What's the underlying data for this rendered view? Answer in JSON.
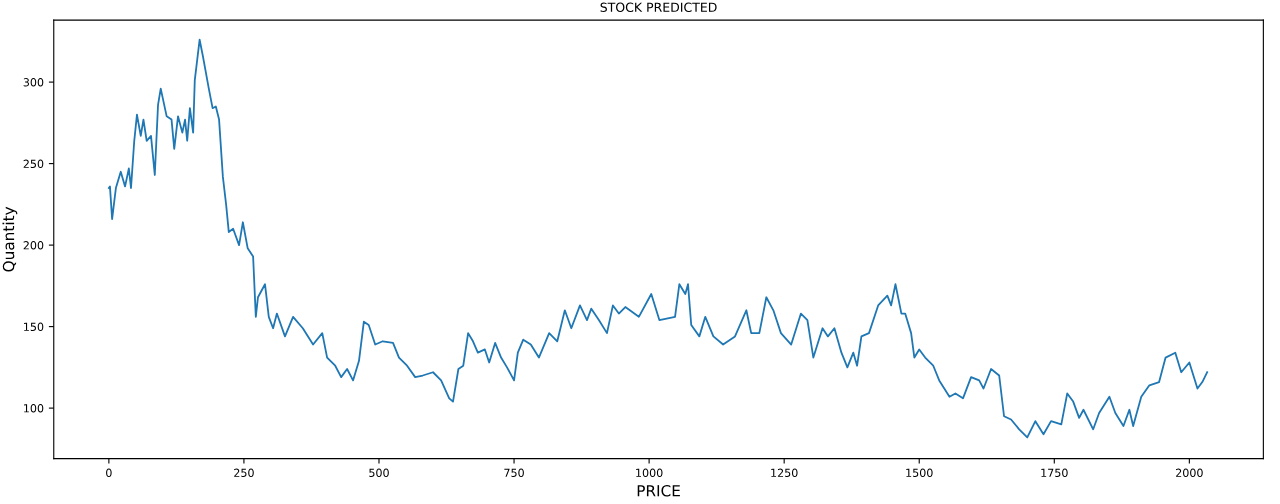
{
  "chart_data": {
    "type": "line",
    "title": "STOCK PREDICTED",
    "xlabel": "PRICE",
    "ylabel": "Quantity",
    "xlim": [
      -102,
      2137
    ],
    "ylim": [
      69,
      338
    ],
    "xticks": [
      0,
      250,
      500,
      750,
      1000,
      1250,
      1500,
      1750,
      2000
    ],
    "yticks": [
      100,
      150,
      200,
      250,
      300
    ],
    "grid": false,
    "series": [
      {
        "color": "#1f77b4",
        "x": [
          0,
          2,
          6,
          13,
          22,
          30,
          37,
          41,
          47,
          52,
          59,
          64,
          70,
          78,
          85,
          91,
          96,
          107,
          116,
          121,
          128,
          136,
          141,
          145,
          150,
          156,
          159,
          168,
          174,
          185,
          192,
          198,
          204,
          211,
          217,
          222,
          230,
          241,
          248,
          257,
          267,
          272,
          276,
          289,
          296,
          304,
          311,
          326,
          341,
          359,
          378,
          395,
          404,
          419,
          430,
          441,
          452,
          463,
          472,
          481,
          493,
          507,
          526,
          537,
          552,
          567,
          581,
          600,
          615,
          630,
          637,
          647,
          656,
          665,
          674,
          683,
          696,
          704,
          715,
          726,
          737,
          750,
          757,
          767,
          781,
          796,
          815,
          830,
          844,
          856,
          872,
          885,
          893,
          907,
          922,
          933,
          944,
          956,
          981,
          1004,
          1019,
          1048,
          1056,
          1067,
          1072,
          1078,
          1093,
          1104,
          1119,
          1137,
          1159,
          1180,
          1189,
          1204,
          1217,
          1230,
          1244,
          1263,
          1281,
          1293,
          1304,
          1321,
          1331,
          1343,
          1356,
          1367,
          1378,
          1385,
          1393,
          1407,
          1424,
          1441,
          1448,
          1456,
          1467,
          1474,
          1485,
          1491,
          1500,
          1511,
          1526,
          1537,
          1556,
          1567,
          1581,
          1596,
          1611,
          1619,
          1633,
          1648,
          1657,
          1670,
          1685,
          1700,
          1715,
          1730,
          1744,
          1763,
          1774,
          1785,
          1796,
          1804,
          1822,
          1833,
          1852,
          1863,
          1878,
          1889,
          1896,
          1911,
          1926,
          1944,
          1956,
          1974,
          1985,
          2000,
          2015,
          2024,
          2033
        ],
        "values": [
          235,
          236,
          216,
          235,
          245,
          236,
          247,
          235,
          264,
          280,
          267,
          277,
          264,
          267,
          243,
          286,
          296,
          279,
          277,
          259,
          279,
          269,
          277,
          264,
          284,
          269,
          301,
          326,
          316,
          296,
          284,
          285,
          277,
          242,
          225,
          208,
          210,
          200,
          214,
          198,
          193,
          156,
          168,
          176,
          156,
          149,
          158,
          144,
          156,
          149,
          139,
          146,
          131,
          126,
          119,
          124,
          117,
          129,
          153,
          151,
          139,
          141,
          140,
          131,
          126,
          119,
          120,
          122,
          117,
          106,
          104,
          124,
          126,
          146,
          141,
          134,
          136,
          128,
          140,
          131,
          125,
          117,
          134,
          142,
          139,
          131,
          146,
          141,
          160,
          149,
          163,
          154,
          161,
          154,
          146,
          163,
          158,
          162,
          156,
          170,
          154,
          156,
          176,
          170,
          176,
          151,
          144,
          156,
          144,
          139,
          144,
          160,
          146,
          146,
          168,
          160,
          146,
          139,
          158,
          154,
          131,
          149,
          144,
          149,
          134,
          125,
          134,
          126,
          144,
          146,
          163,
          169,
          163,
          176,
          158,
          158,
          146,
          131,
          136,
          131,
          126,
          117,
          107,
          109,
          106,
          119,
          117,
          112,
          124,
          120,
          95,
          93,
          87,
          82,
          92,
          84,
          92,
          90,
          109,
          104,
          94,
          99,
          87,
          97,
          107,
          97,
          89,
          99,
          89,
          107,
          114,
          116,
          131,
          134,
          122,
          128,
          112,
          116,
          122
        ]
      }
    ]
  }
}
